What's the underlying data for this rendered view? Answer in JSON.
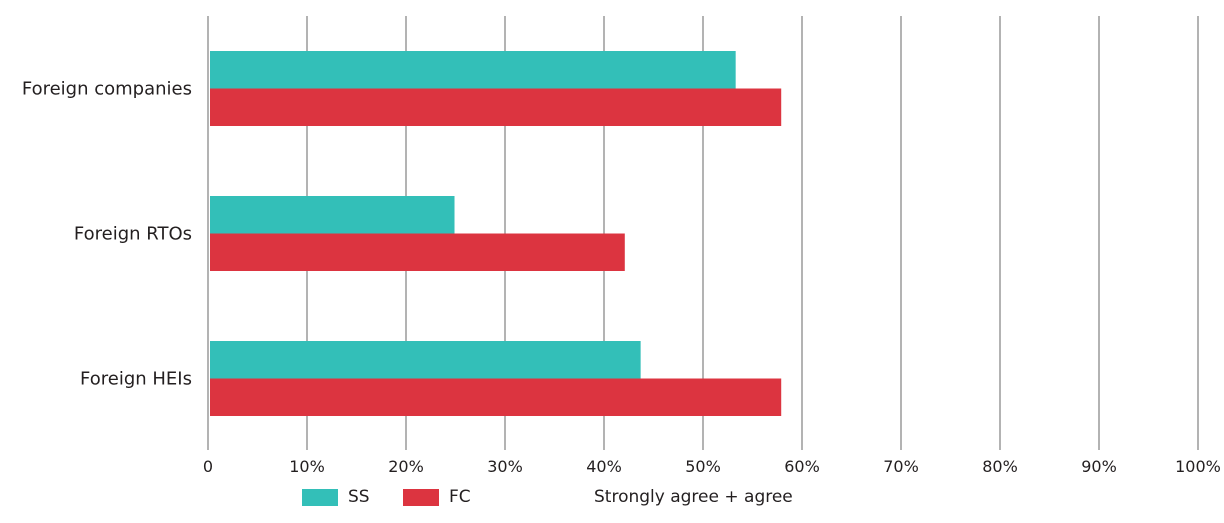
{
  "chart_data": {
    "type": "bar",
    "orientation": "horizontal",
    "categories": [
      "Foreign companies",
      "Foreign RTOs",
      "Foreign HEIs"
    ],
    "series": [
      {
        "name": "SS",
        "color": "#33bfb8",
        "values": [
          53.3,
          24.9,
          43.7
        ]
      },
      {
        "name": "FC",
        "color": "#dc3440",
        "values": [
          57.9,
          42.1,
          57.9
        ]
      }
    ],
    "xlim": [
      0,
      100
    ],
    "xticks": [
      0,
      10,
      20,
      30,
      40,
      50,
      60,
      70,
      80,
      90,
      100
    ],
    "xtick_labels": [
      "0",
      "10%",
      "20%",
      "30%",
      "40%",
      "50%",
      "60%",
      "70%",
      "80%",
      "90%",
      "100%"
    ],
    "grid": "vertical",
    "legend_position": "bottom",
    "legend_note": "Strongly agree + agree"
  }
}
